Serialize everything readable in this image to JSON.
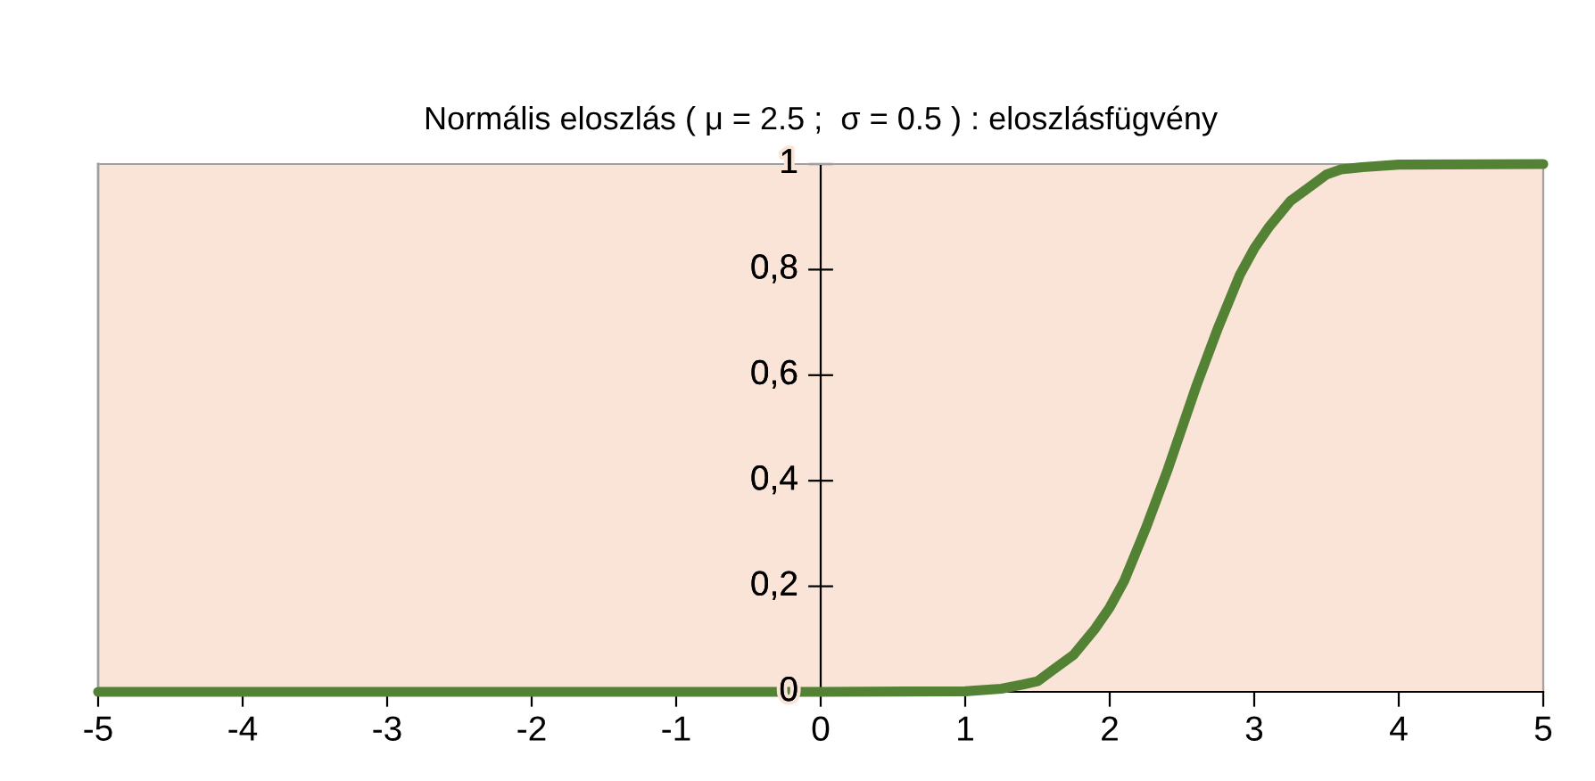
{
  "chart_data": {
    "type": "line",
    "title": "Normális eloszlás ( μ = 2.5 ;  σ = 0.5 ) : eloszlásfügvény",
    "x": [
      -5,
      0,
      1,
      1.25,
      1.4,
      1.5,
      1.6,
      1.75,
      1.9,
      2,
      2.1,
      2.25,
      2.4,
      2.5,
      2.6,
      2.75,
      2.9,
      3,
      3.1,
      3.25,
      3.4,
      3.5,
      3.6,
      3.75,
      4,
      5
    ],
    "series": [
      {
        "color": "#548235",
        "values": [
          0,
          0,
          0.001,
          0.006,
          0.014,
          0.02,
          0.04,
          0.07,
          0.12,
          0.16,
          0.21,
          0.31,
          0.42,
          0.5,
          0.58,
          0.69,
          0.79,
          0.84,
          0.88,
          0.93,
          0.96,
          0.98,
          0.99,
          0.994,
          0.999,
          1
        ]
      }
    ],
    "xlim": [
      -5,
      5
    ],
    "ylim": [
      0,
      1
    ],
    "xticks": [
      -5,
      -4,
      -3,
      -2,
      -1,
      0,
      1,
      2,
      3,
      4,
      5
    ],
    "yticks": [
      {
        "value": 0,
        "label": "0"
      },
      {
        "value": 0.2,
        "label": "0,2"
      },
      {
        "value": 0.4,
        "label": "0,4"
      },
      {
        "value": 0.6,
        "label": "0,6"
      },
      {
        "value": 0.8,
        "label": "0,8"
      },
      {
        "value": 1,
        "label": "1"
      }
    ],
    "grid": false,
    "legend": false,
    "marker": "none",
    "line_style": "solid"
  }
}
